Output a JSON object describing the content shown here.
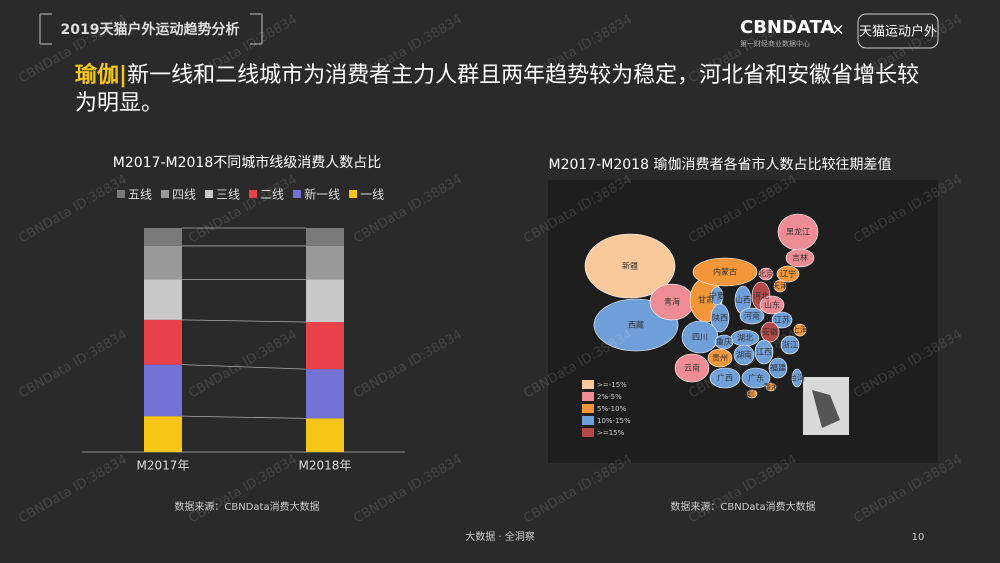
{
  "header": {
    "title": "2019天猫户外运动趋势分析",
    "brand": "CBNDATA",
    "brand_sub": "第一财经商业数据中心",
    "times": "×",
    "partner": "天猫运动户外"
  },
  "headline": {
    "keyword": "瑜伽",
    "separator": "|",
    "text": "新一线和二线城市为消费者主力人群且两年趋势较为稳定，河北省和安徽省增长较为明显。"
  },
  "watermark": "CBNData ID:38834",
  "chart_data": {
    "type": "stacked_bar",
    "title": "M2017-M2018不同城市线级消费人数占比",
    "categories": [
      "M2017年",
      "M2018年"
    ],
    "ylim": [
      0,
      100
    ],
    "series": [
      {
        "name": "一线",
        "color": "#f5c518",
        "values": [
          16,
          15
        ]
      },
      {
        "name": "新一线",
        "color": "#7373d6",
        "values": [
          23,
          22
        ]
      },
      {
        "name": "二线",
        "color": "#e8414a",
        "values": [
          20,
          21
        ]
      },
      {
        "name": "三线",
        "color": "#c8c8c8",
        "values": [
          18,
          19
        ]
      },
      {
        "name": "四线",
        "color": "#999999",
        "values": [
          15,
          15
        ]
      },
      {
        "name": "五线",
        "color": "#7a7a7a",
        "values": [
          8,
          8
        ]
      }
    ],
    "source": "数据来源：CBNData消费大数据"
  },
  "map": {
    "title": "M2017-M2018 瑜伽消费者各省市人数占比较往期差值",
    "legend": [
      ">=-15%",
      "2%-5%",
      "5%-10%",
      "10%-15%",
      ">=15%"
    ],
    "legend_colors": [
      "#f9c89b",
      "#ee8c95",
      "#f3963a",
      "#6f9fd8",
      "#b34a4a"
    ],
    "provinces": [
      {
        "name": "新疆",
        "level": 0
      },
      {
        "name": "西藏",
        "level": 3
      },
      {
        "name": "青海",
        "level": 1
      },
      {
        "name": "甘肃",
        "level": 2
      },
      {
        "name": "内蒙古",
        "level": 2
      },
      {
        "name": "黑龙江",
        "level": 1
      },
      {
        "name": "吉林",
        "level": 1
      },
      {
        "name": "辽宁",
        "level": 2
      },
      {
        "name": "北京",
        "level": 1
      },
      {
        "name": "天津",
        "level": 2
      },
      {
        "name": "河北",
        "level": 4
      },
      {
        "name": "山西",
        "level": 3
      },
      {
        "name": "山东",
        "level": 1
      },
      {
        "name": "宁夏",
        "level": 3
      },
      {
        "name": "陕西",
        "level": 3
      },
      {
        "name": "河南",
        "level": 3
      },
      {
        "name": "江苏",
        "level": 3
      },
      {
        "name": "上海",
        "level": 2
      },
      {
        "name": "安徽",
        "level": 4
      },
      {
        "name": "湖北",
        "level": 3
      },
      {
        "name": "四川",
        "level": 3
      },
      {
        "name": "重庆",
        "level": 3
      },
      {
        "name": "浙江",
        "level": 3
      },
      {
        "name": "贵州",
        "level": 2
      },
      {
        "name": "湖南",
        "level": 3
      },
      {
        "name": "江西",
        "level": 3
      },
      {
        "name": "福建",
        "level": 3
      },
      {
        "name": "云南",
        "level": 1
      },
      {
        "name": "广西",
        "level": 3
      },
      {
        "name": "广东",
        "level": 3
      },
      {
        "name": "台湾",
        "level": 3
      },
      {
        "name": "香港",
        "level": 2
      },
      {
        "name": "澳门",
        "level": 2
      }
    ],
    "source": "数据来源：CBNData消费大数据"
  },
  "footer": {
    "tagline": "大数据 · 全洞察",
    "page": "10"
  }
}
